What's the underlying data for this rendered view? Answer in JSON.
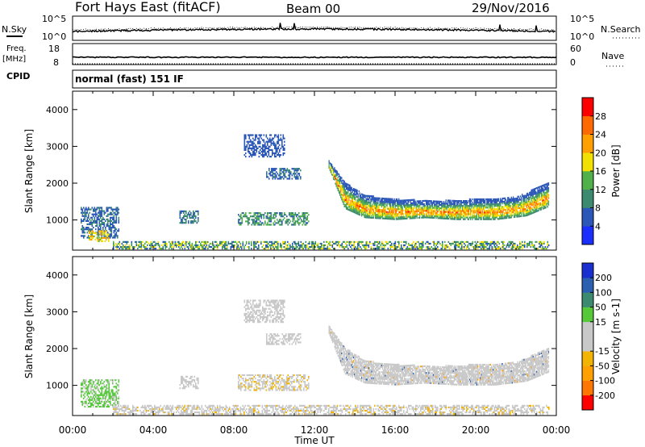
{
  "header": {
    "title": "Fort Hays East (fitACF)",
    "beam": "Beam 00",
    "date": "29/Nov/2016"
  },
  "noise_panel": {
    "left_label": "N.Sky",
    "right_label": "N.Search",
    "left_ticks": [
      "10^5",
      "10^0"
    ],
    "right_ticks": [
      "10^5",
      "10^0"
    ]
  },
  "freq_panel": {
    "left_label_1": "Freq.",
    "left_label_2": "[MHz]",
    "right_label": "Nave",
    "left_ticks": [
      "18",
      "8"
    ],
    "right_ticks": [
      "60",
      "0"
    ]
  },
  "cpid": {
    "label": "CPID",
    "value": "normal (fast) 151 IF"
  },
  "x_axis": {
    "label": "Time UT",
    "ticks": [
      "00:00",
      "04:00",
      "08:00",
      "12:00",
      "16:00",
      "20:00",
      "00:00"
    ]
  },
  "colors": {
    "power_scale": [
      "#1a2fff",
      "#2b57b8",
      "#3c8a70",
      "#52b04a",
      "#f2e000",
      "#ffa000",
      "#ff6a00",
      "#ff0000"
    ],
    "velocity_scale": [
      "#ff0000",
      "#ff7700",
      "#ffa000",
      "#f2b400",
      "#c8c8c8",
      "#c8c8c8",
      "#55c93a",
      "#3c8a70",
      "#2b5fb0",
      "#1a2fcf"
    ]
  },
  "chart_data": [
    {
      "type": "heatmap",
      "panel": "power",
      "ylabel": "Slant Range [km]",
      "xlabel": "",
      "xlim": [
        "00:00",
        "24:00"
      ],
      "ylim": [
        180,
        4500
      ],
      "yticks": [
        "1000",
        "2000",
        "3000",
        "4000"
      ],
      "colorbar": {
        "label": "Power [dB]",
        "ticks": [
          "4",
          "8",
          "12",
          "16",
          "20",
          "24",
          "28"
        ],
        "range": [
          0,
          32
        ]
      },
      "regions": [
        {
          "t0": 0.4,
          "t1": 2.3,
          "r0": 500,
          "r1": 1350,
          "vmin": 4,
          "vmax": 10
        },
        {
          "t0": 0.8,
          "t1": 1.8,
          "r0": 400,
          "r1": 700,
          "vmin": 14,
          "vmax": 24
        },
        {
          "t0": 5.3,
          "t1": 6.2,
          "r0": 900,
          "r1": 1250,
          "vmin": 6,
          "vmax": 12
        },
        {
          "t0": 8.2,
          "t1": 11.7,
          "r0": 850,
          "r1": 1200,
          "vmin": 6,
          "vmax": 16
        },
        {
          "t0": 8.5,
          "t1": 10.5,
          "r0": 2700,
          "r1": 3300,
          "vmin": 4,
          "vmax": 8
        },
        {
          "t0": 9.6,
          "t1": 11.3,
          "r0": 2100,
          "r1": 2400,
          "vmin": 4,
          "vmax": 10
        },
        {
          "t0": 2.0,
          "t1": 23.6,
          "r0": 200,
          "r1": 420,
          "vmin": 4,
          "vmax": 20
        }
      ],
      "band": {
        "t_start": 12.7,
        "t_end": 23.6,
        "lower_range_km": [
          [
            12.7,
            2400
          ],
          [
            13.5,
            1300
          ],
          [
            14.5,
            1050
          ],
          [
            16,
            1000
          ],
          [
            17.5,
            1050
          ],
          [
            19,
            1000
          ],
          [
            21,
            1000
          ],
          [
            22.5,
            1100
          ],
          [
            23.6,
            1350
          ]
        ],
        "upper_range_km": [
          [
            12.7,
            2600
          ],
          [
            13.5,
            2000
          ],
          [
            14.5,
            1650
          ],
          [
            16,
            1550
          ],
          [
            18,
            1500
          ],
          [
            20,
            1550
          ],
          [
            22,
            1600
          ],
          [
            23.6,
            2000
          ]
        ],
        "vmin": 4,
        "vmax": 28
      }
    },
    {
      "type": "heatmap",
      "panel": "velocity",
      "ylabel": "Slant Range [km]",
      "xlabel": "Time UT",
      "xlim": [
        "00:00",
        "24:00"
      ],
      "ylim": [
        180,
        4500
      ],
      "yticks": [
        "1000",
        "2000",
        "3000",
        "4000"
      ],
      "colorbar": {
        "label": "Velocity [m s-1]",
        "ticks": [
          "-200",
          "-100",
          "-50",
          "-15",
          "15",
          "50",
          "100",
          "200"
        ],
        "range": [
          -250,
          250
        ]
      },
      "regions": [
        {
          "t0": 0.4,
          "t1": 2.3,
          "r0": 400,
          "r1": 1150,
          "vmin": 30,
          "vmax": 90
        },
        {
          "t0": 5.3,
          "t1": 6.2,
          "r0": 900,
          "r1": 1250,
          "vmin": -14,
          "vmax": 14
        },
        {
          "t0": 8.2,
          "t1": 11.7,
          "r0": 850,
          "r1": 1300,
          "vmin": -60,
          "vmax": -20
        },
        {
          "t0": 8.5,
          "t1": 10.5,
          "r0": 2700,
          "r1": 3300,
          "vmin": -14,
          "vmax": 14
        },
        {
          "t0": 9.6,
          "t1": 11.3,
          "r0": 2100,
          "r1": 2400,
          "vmin": -14,
          "vmax": 14
        },
        {
          "t0": 2.0,
          "t1": 23.6,
          "r0": 200,
          "r1": 450,
          "vmin": -55,
          "vmax": -20
        }
      ],
      "band": {
        "t_start": 12.7,
        "t_end": 23.6,
        "lower_range_km": [
          [
            12.7,
            2400
          ],
          [
            13.5,
            1300
          ],
          [
            14.5,
            1050
          ],
          [
            16,
            1000
          ],
          [
            17.5,
            1050
          ],
          [
            19,
            1000
          ],
          [
            21,
            1000
          ],
          [
            22.5,
            1100
          ],
          [
            23.6,
            1350
          ]
        ],
        "upper_range_km": [
          [
            12.7,
            2600
          ],
          [
            13.5,
            2000
          ],
          [
            14.5,
            1650
          ],
          [
            16,
            1550
          ],
          [
            18,
            1500
          ],
          [
            20,
            1550
          ],
          [
            22,
            1600
          ],
          [
            23.6,
            2000
          ]
        ],
        "vmin": -14,
        "vmax": 14
      }
    }
  ]
}
